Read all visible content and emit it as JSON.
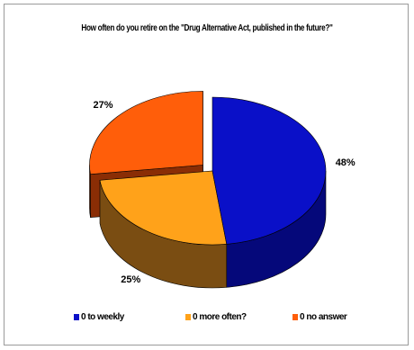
{
  "chart_data": {
    "type": "pie",
    "title": "How often do you retire on the \"Drug Alternative Act, published in the future?\"",
    "slices": [
      {
        "label": "0 to weekly",
        "value": 48,
        "data_label": "48%",
        "color": "#0A10C8",
        "side": "#05087A"
      },
      {
        "label": "0 more often?",
        "value": 25,
        "data_label": "25%",
        "color": "#FFA21A",
        "side": "#7A4D12"
      },
      {
        "label": "0 no answer",
        "value": 27,
        "data_label": "27%",
        "color": "#FF5E0A",
        "side": "#8A2D05",
        "exploded": true
      }
    ],
    "legend_position": "bottom",
    "style": "3d-exploded"
  }
}
